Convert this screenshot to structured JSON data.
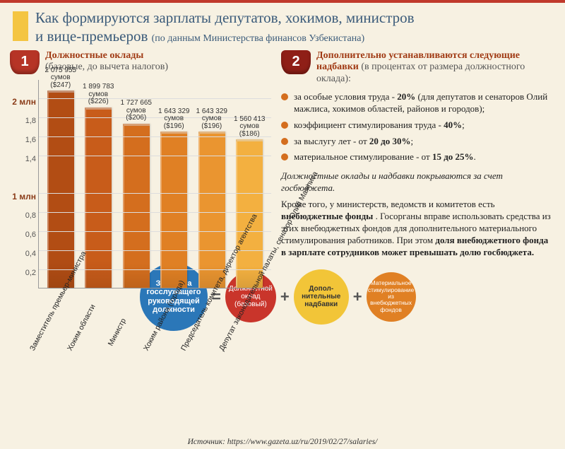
{
  "background_color": "#f7f1e2",
  "header": {
    "title_line1": "Как формируются зарплаты депутатов, хокимов, министров",
    "title_line2_a": "и вице-премьеров ",
    "title_line2_b": "(по данным Министерства финансов Узбекистана)"
  },
  "section1": {
    "badge": "1",
    "badge_color": "#b63426",
    "title_bold": "Должностные оклады",
    "title_paren": "(базовые, до вычета налогов)"
  },
  "chart": {
    "type": "bar",
    "ymax": 2200000,
    "yticks": [
      {
        "v": 2000000,
        "label": "2 млн",
        "major": true
      },
      {
        "v": 1800000,
        "label": "1,8"
      },
      {
        "v": 1600000,
        "label": "1,6"
      },
      {
        "v": 1400000,
        "label": "1,4"
      },
      {
        "v": 1000000,
        "label": "1 млн",
        "major": true
      },
      {
        "v": 800000,
        "label": "0,8"
      },
      {
        "v": 600000,
        "label": "0,6"
      },
      {
        "v": 400000,
        "label": "0,4"
      },
      {
        "v": 200000,
        "label": "0,2"
      }
    ],
    "bars": [
      {
        "sum": "2 075 955",
        "usd": "$247",
        "value": 2075955,
        "x": "Заместитель\nпремьер-министра",
        "color": "#b24d14"
      },
      {
        "sum": "1 899 783",
        "usd": "$226",
        "value": 1899783,
        "x": "Хоким области",
        "color": "#c85c1a"
      },
      {
        "sum": "1 727 665",
        "usd": "$206",
        "value": 1727665,
        "x": "Министр",
        "color": "#d46e1e"
      },
      {
        "sum": "1 643 329",
        "usd": "$196",
        "value": 1643329,
        "x": "Хоким района (города)",
        "color": "#e08024"
      },
      {
        "sum": "1 643 329",
        "usd": "$196",
        "value": 1643329,
        "x": "Председатель комитета,\nдиректор агентства",
        "color": "#ea9530"
      },
      {
        "sum": "1 560 413",
        "usd": "$186",
        "value": 1560413,
        "x": "Депутат законодательной\nпалаты, сенатор Олий Мажлиса",
        "color": "#f3b040"
      }
    ]
  },
  "section2": {
    "badge": "2",
    "badge_color": "#8f1f17",
    "title_bold": "Дополнительно устанавливаются следующие надбавки ",
    "title_paren": "(в процентах от размера должностного оклада):"
  },
  "bullets": [
    {
      "color": "#d46e1e",
      "text_a": "за особые условия труда - ",
      "b": "20%",
      "text_c": " (для депутатов и сенаторов Олий мажлиса, хокимов областей, районов и городов);"
    },
    {
      "color": "#d46e1e",
      "text_a": "коэффициент стимулирования труда - ",
      "b": "40%",
      "text_c": ";"
    },
    {
      "color": "#d46e1e",
      "text_a": "за выслугу лет - от ",
      "b": "20 до 30%",
      "text_c": ";"
    },
    {
      "color": "#d46e1e",
      "text_a": "материальное стимулирование - от ",
      "b": "15 до 25%",
      "text_c": "."
    }
  ],
  "note": "Должностные оклады и надбавки покрываются за счет госбюджета.",
  "para_a": "Кроме того, у министерств, ведомств и комитетов есть ",
  "para_b": "внебюджетные фонды",
  "para_c": ". Госорганы вправе использовать средства из этих внебюджетных фондов для дополнительного материального стимулирования работников. При этом ",
  "para_d": "доля внебюджетного фонда в зарплате сотрудников может превышать долю госбюджета.",
  "formula": {
    "c1": {
      "text": "Зарплата госслужащего руководящей должности",
      "size": 96,
      "bg": "#2b77b8",
      "fs": 11,
      "bold": true
    },
    "c2": {
      "text": "Должностной оклад (базовый)",
      "size": 72,
      "bg": "#c9352b",
      "fs": 10
    },
    "c3": {
      "text": "Допол- нительные надбавки",
      "size": 78,
      "bg": "#f2c538",
      "fs": 10,
      "color": "#333",
      "bold": true
    },
    "c4": {
      "text": "Материальное стимулирование из внебюджетных фондов",
      "size": 70,
      "bg": "#e08024",
      "fs": 8.5
    }
  },
  "source": "Источник: https://www.gazeta.uz/ru/2019/02/27/salaries/"
}
